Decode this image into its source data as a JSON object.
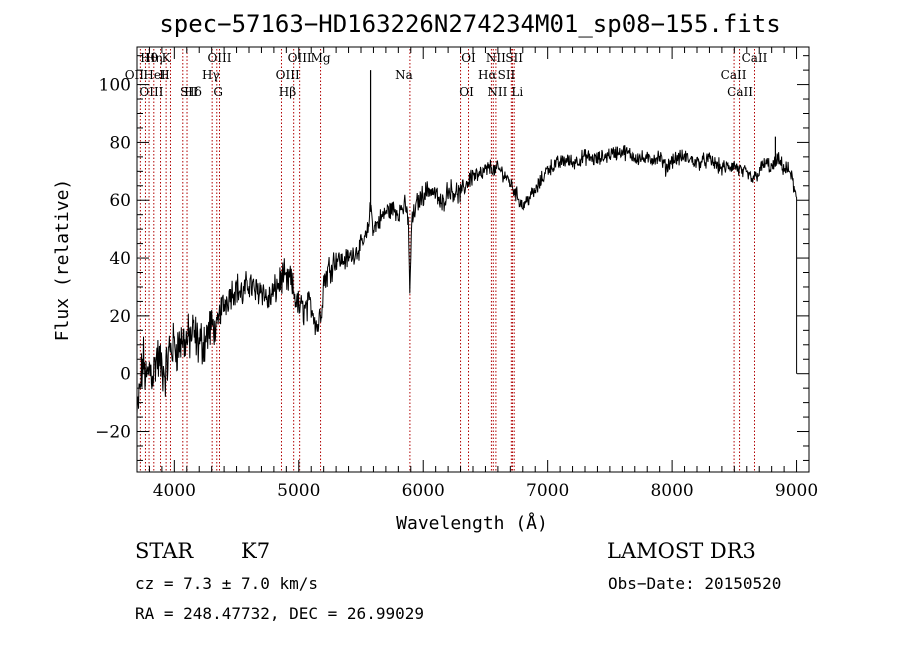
{
  "chart_data": {
    "type": "line",
    "title": "spec−57163−HD163226N274234M01_sp08−155.fits",
    "xlabel": "Wavelength (Å)",
    "ylabel": "Flux (relative)",
    "xlim": [
      3700,
      9100
    ],
    "ylim": [
      -34,
      113
    ],
    "x_ticks": [
      4000,
      5000,
      6000,
      7000,
      8000,
      9000
    ],
    "x_tick_labels": [
      "4000",
      "5000",
      "6000",
      "7000",
      "8000",
      "9000"
    ],
    "y_ticks": [
      -20,
      0,
      20,
      40,
      60,
      80,
      100
    ],
    "y_tick_labels": [
      "−20",
      "0",
      "20",
      "40",
      "60",
      "80",
      "100"
    ],
    "grid": false,
    "series": [
      {
        "name": "flux",
        "x": [
          3700,
          3725,
          3750,
          3775,
          3800,
          3830,
          3860,
          3900,
          3930,
          3960,
          4000,
          4030,
          4060,
          4100,
          4150,
          4200,
          4250,
          4300,
          4340,
          4370,
          4400,
          4450,
          4500,
          4550,
          4600,
          4650,
          4700,
          4750,
          4800,
          4850,
          4880,
          4900,
          4930,
          4960,
          5000,
          5050,
          5100,
          5150,
          5180,
          5200,
          5250,
          5300,
          5350,
          5400,
          5450,
          5500,
          5550,
          5577,
          5600,
          5650,
          5700,
          5750,
          5800,
          5850,
          5880,
          5893,
          5905,
          5950,
          6000,
          6050,
          6100,
          6150,
          6200,
          6250,
          6300,
          6350,
          6400,
          6450,
          6500,
          6550,
          6563,
          6600,
          6650,
          6700,
          6750,
          6800,
          6850,
          6900,
          6950,
          7000,
          7050,
          7100,
          7150,
          7200,
          7300,
          7400,
          7500,
          7600,
          7700,
          7800,
          7900,
          7950,
          8000,
          8100,
          8200,
          8300,
          8400,
          8500,
          8550,
          8600,
          8650,
          8700,
          8750,
          8800,
          8850,
          8900,
          8950,
          9000
        ],
        "y": [
          -15,
          -5,
          5,
          -3,
          2,
          0,
          6,
          2,
          0,
          8,
          10,
          9,
          12,
          11,
          14,
          10,
          12,
          17,
          14,
          22,
          24,
          28,
          30,
          27,
          32,
          28,
          30,
          25,
          28,
          32,
          34,
          31,
          33,
          28,
          23,
          22,
          24,
          16,
          22,
          32,
          37,
          40,
          39,
          40,
          42,
          44,
          48,
          58,
          50,
          53,
          56,
          57,
          56,
          58,
          54,
          25,
          52,
          59,
          62,
          64,
          62,
          58,
          64,
          63,
          62,
          66,
          69,
          68,
          70,
          72,
          70,
          71,
          69,
          66,
          62,
          58,
          61,
          63,
          67,
          71,
          72,
          73,
          74,
          73,
          75,
          74,
          76,
          77,
          75,
          74,
          75,
          71,
          74,
          75,
          73,
          74,
          71,
          72,
          70,
          69,
          67,
          70,
          73,
          71,
          74,
          71,
          70,
          60
        ]
      }
    ],
    "spike_x": [
      5577,
      8830
    ],
    "line_markers": [
      {
        "label": "Hθ",
        "x": 3797
      },
      {
        "label": "OII",
        "x": 3727
      },
      {
        "label": "OIII",
        "x": 3768
      },
      {
        "label": "K",
        "x": 3934
      },
      {
        "label": "HeI",
        "x": 3889
      },
      {
        "label": "SII",
        "x": 4068
      },
      {
        "label": "Hη",
        "x": 3835
      },
      {
        "label": "H",
        "x": 3969
      },
      {
        "label": "Hδ",
        "x": 4102
      },
      {
        "label": "OIII",
        "x": 4363
      },
      {
        "label": "Hγ",
        "x": 4341
      },
      {
        "label": "G",
        "x": 4304
      },
      {
        "label": "OIII",
        "x": 5007
      },
      {
        "label": "OIII",
        "x": 4959
      },
      {
        "label": "Hβ",
        "x": 4861
      },
      {
        "label": "Mg",
        "x": 5175
      },
      {
        "label": "Na",
        "x": 5893
      },
      {
        "label": "OI",
        "x": 6300
      },
      {
        "label": "OI",
        "x": 6364
      },
      {
        "label": "Hα",
        "x": 6563
      },
      {
        "label": "NII",
        "x": 6548
      },
      {
        "label": "NII",
        "x": 6584
      },
      {
        "label": "SII",
        "x": 6717
      },
      {
        "label": "Li",
        "x": 6708
      },
      {
        "label": "SII",
        "x": 6731
      },
      {
        "label": "CaII",
        "x": 8542
      },
      {
        "label": "CaII",
        "x": 8498
      },
      {
        "label": "CaII",
        "x": 8662
      }
    ]
  },
  "info": {
    "object_class": "STAR",
    "subclass": "K7",
    "survey": "LAMOST  DR3",
    "cz": "cz = 7.3 ± 7.0 km/s",
    "obs_date": "Obs−Date: 20150520",
    "coords": "RA = 248.47732, DEC =  26.99029"
  },
  "colors": {
    "axis": "#000000",
    "spectrum": "#000000",
    "marker_line": "#b00000"
  }
}
